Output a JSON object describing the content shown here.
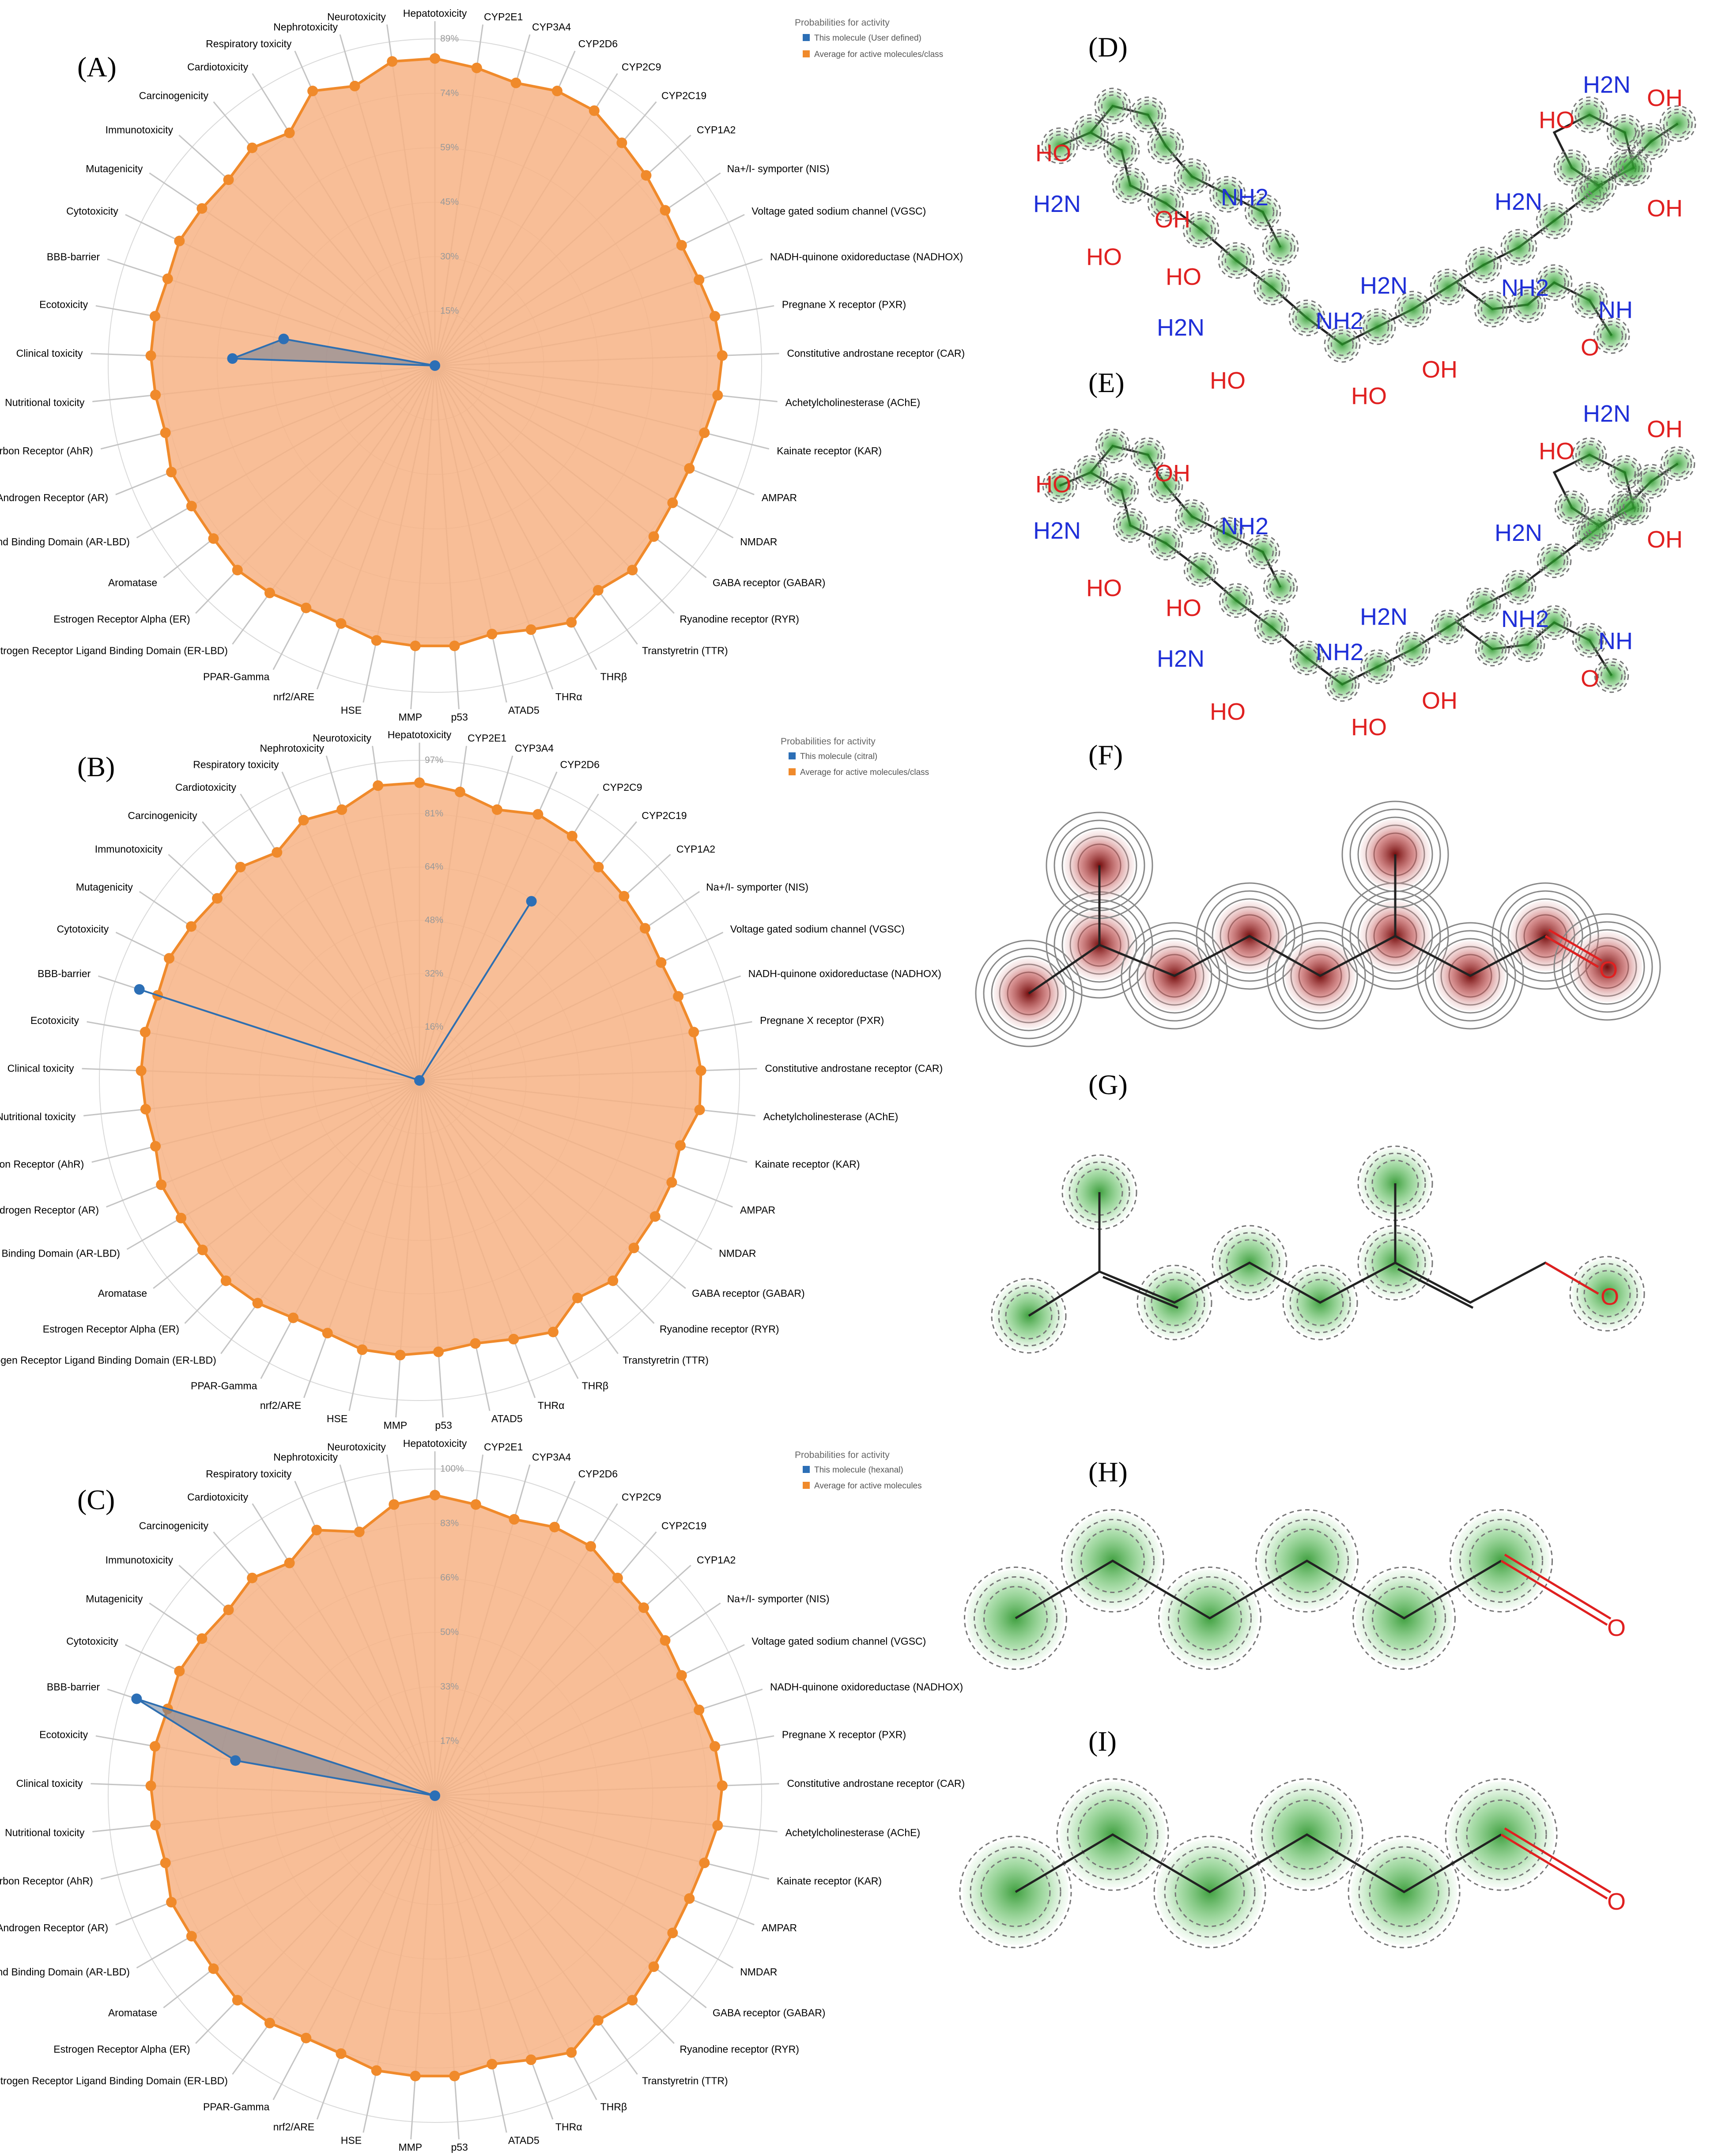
{
  "panel_labels": {
    "A": "(A)",
    "B": "(B)",
    "C": "(C)",
    "D": "(D)",
    "E": "(E)",
    "F": "(F)",
    "G": "(G)",
    "H": "(H)",
    "I": "(I)"
  },
  "colors": {
    "average_fill": "#f7b385",
    "average_line": "#f08a2b",
    "molecule_point": "#2c6fb6",
    "molecule_fill": "#6e7e96",
    "atom_oxygen": "#e02020",
    "atom_nitrogen": "#1f2fd8",
    "contribution_positive": "#2e9e2e",
    "contribution_negative": "#a01010"
  },
  "axes": [
    "Hepatotoxicity",
    "CYP2E1",
    "CYP3A4",
    "CYP2D6",
    "CYP2C9",
    "CYP2C19",
    "CYP1A2",
    "Na+/I- symporter (NIS)",
    "Voltage gated sodium channel (VGSC)",
    "NADH-quinone oxidoreductase (NADHOX)",
    "Pregnane X receptor (PXR)",
    "Constitutive androstane receptor (CAR)",
    "Achetylcholinesterase (AChE)",
    "Kainate receptor (KAR)",
    "AMPAR",
    "NMDAR",
    "GABA receptor (GABAR)",
    "Ryanodine receptor (RYR)",
    "Transtyretrin (TTR)",
    "THRβ",
    "THRα",
    "ATAD5",
    "p53",
    "MMP",
    "HSE",
    "nrf2/ARE",
    "PPAR-Gamma",
    "Estrogen Receptor Ligand Binding Domain (ER-LBD)",
    "Estrogen Receptor Alpha (ER)",
    "Aromatase",
    "Androgen Receptor Ligand Binding Domain (AR-LBD)",
    "Androgen Receptor (AR)",
    "Aryl hydrocarbon Receptor (AhR)",
    "Nutritional toxicity",
    "Clinical toxicity",
    "Ecotoxicity",
    "BBB-barrier",
    "Cytotoxicity",
    "Mutagenicity",
    "Immunotoxicity",
    "Carcinogenicity",
    "Cardiotoxicity",
    "Respiratory toxicity",
    "Nephrotoxicity",
    "Neurotoxicity"
  ],
  "chart_data": [
    {
      "type": "radar",
      "panel": "(A)",
      "legend": {
        "title": "Probabilities for activity",
        "molecule": "This molecule (User defined)",
        "average": "Average for active molecules/class",
        "placement": "top-right"
      },
      "ticks": [
        "89%",
        "74%",
        "59%",
        "45%",
        "30%",
        "15%"
      ],
      "ymax": 100,
      "average": [
        94,
        92,
        90,
        92,
        92,
        89,
        87,
        85,
        84,
        85,
        87,
        88,
        87,
        85,
        84,
        84,
        85,
        87,
        85,
        89,
        86,
        84,
        86,
        86,
        86,
        84,
        84,
        86,
        87,
        86,
        86,
        87,
        85,
        86,
        87,
        87,
        86,
        87,
        86,
        85,
        87,
        84,
        92,
        89,
        94
      ],
      "molecule": [
        0,
        0,
        0,
        0,
        0,
        0,
        0,
        0,
        0,
        0,
        0,
        0,
        0,
        0,
        0,
        0,
        0,
        0,
        0,
        0,
        0,
        0,
        0,
        0,
        0,
        0,
        0,
        0,
        0,
        0,
        0,
        0,
        0,
        0,
        62,
        47,
        0,
        0,
        0,
        0,
        0,
        0,
        0,
        0,
        0
      ]
    },
    {
      "type": "radar",
      "panel": "(B)",
      "legend": {
        "title": "Probabilities for activity",
        "molecule": "This molecule (citral)",
        "average": "Average for active molecules/class",
        "placement": "top-right"
      },
      "ticks": [
        "97%",
        "81%",
        "64%",
        "48%",
        "32%",
        "16%"
      ],
      "ymax": 100,
      "average": [
        93,
        91,
        88,
        91,
        90,
        87,
        86,
        85,
        84,
        85,
        87,
        88,
        88,
        84,
        85,
        85,
        85,
        87,
        84,
        89,
        86,
        84,
        85,
        86,
        86,
        84,
        84,
        86,
        87,
        86,
        86,
        87,
        85,
        86,
        87,
        87,
        86,
        87,
        86,
        85,
        87,
        84,
        89,
        88,
        93
      ],
      "molecule": [
        0,
        0,
        0,
        0,
        66,
        0,
        0,
        0,
        0,
        0,
        0,
        0,
        0,
        0,
        0,
        0,
        0,
        0,
        0,
        0,
        0,
        0,
        0,
        0,
        0,
        0,
        0,
        0,
        0,
        0,
        0,
        0,
        0,
        0,
        0,
        0,
        92,
        0,
        0,
        0,
        0,
        0,
        0,
        0,
        0
      ]
    },
    {
      "type": "radar",
      "panel": "(C)",
      "legend": {
        "title": "Probabilities for activity",
        "molecule": "This molecule (hexanal)",
        "average": "Average for active molecules",
        "placement": "top-right"
      },
      "ticks": [
        "100%",
        "83%",
        "66%",
        "50%",
        "33%",
        "17%"
      ],
      "ymax": 100,
      "average": [
        92,
        90,
        88,
        90,
        90,
        87,
        86,
        85,
        84,
        85,
        87,
        88,
        87,
        85,
        84,
        84,
        85,
        87,
        85,
        89,
        86,
        84,
        86,
        86,
        86,
        84,
        84,
        86,
        87,
        86,
        86,
        87,
        85,
        86,
        87,
        87,
        86,
        87,
        86,
        85,
        87,
        84,
        89,
        84,
        90
      ],
      "molecule": [
        0,
        0,
        0,
        0,
        0,
        0,
        0,
        0,
        0,
        0,
        0,
        0,
        0,
        0,
        0,
        0,
        0,
        0,
        0,
        0,
        0,
        0,
        0,
        0,
        0,
        0,
        0,
        0,
        0,
        0,
        0,
        0,
        0,
        0,
        0,
        62,
        96,
        0,
        0,
        0,
        0,
        0,
        0,
        0,
        0
      ]
    }
  ],
  "structures": {
    "large_labels": {
      "ho": "HO",
      "oh": "OH",
      "h2n": "H2N",
      "nh2": "NH2",
      "nh": "NH",
      "o": "O"
    },
    "small_labels": {
      "o": "O"
    }
  }
}
